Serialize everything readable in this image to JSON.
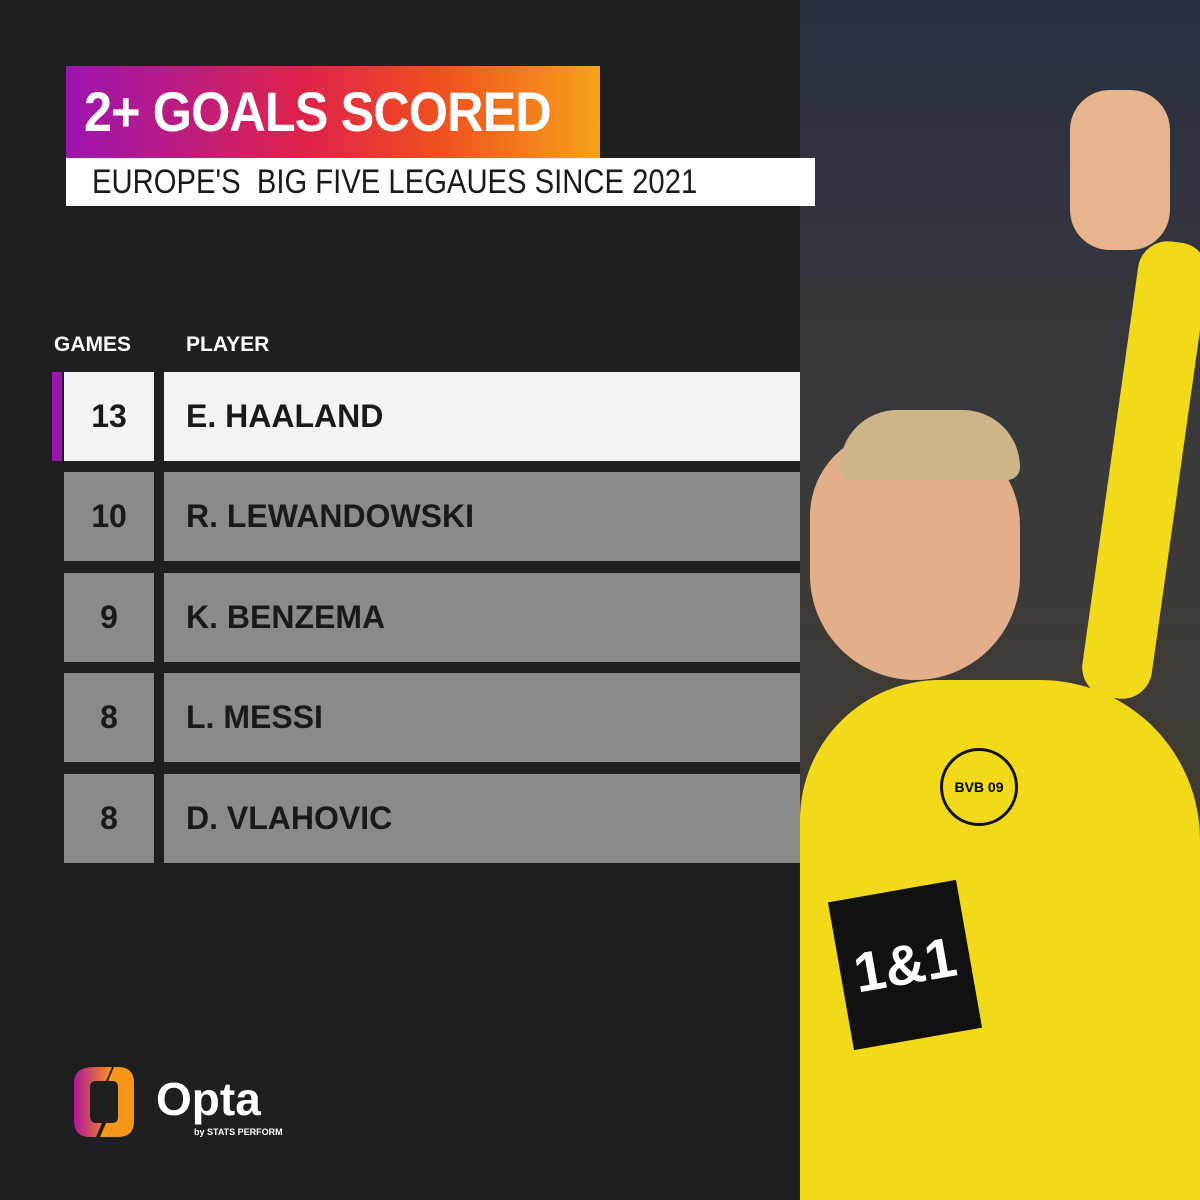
{
  "title": "2+ GOALS SCORED",
  "subtitle": "EUROPE'S  BIG FIVE LEGAUES SINCE 2021",
  "accent_color": "#9b16b0",
  "chart_data": {
    "type": "table",
    "columns": [
      "GAMES",
      "PLAYER"
    ],
    "rows": [
      {
        "games": "13",
        "player": "E. HAALAND",
        "highlighted": true
      },
      {
        "games": "10",
        "player": "R. LEWANDOWSKI"
      },
      {
        "games": "9",
        "player": "K. BENZEMA"
      },
      {
        "games": "8",
        "player": "L. MESSI"
      },
      {
        "games": "8",
        "player": "D. VLAHOVIC"
      }
    ]
  },
  "logo": {
    "name": "Opta",
    "tagline": "by STATS PERFORM"
  },
  "photo": {
    "shirt_sponsor": "1&1",
    "badge": "BVB 09"
  }
}
